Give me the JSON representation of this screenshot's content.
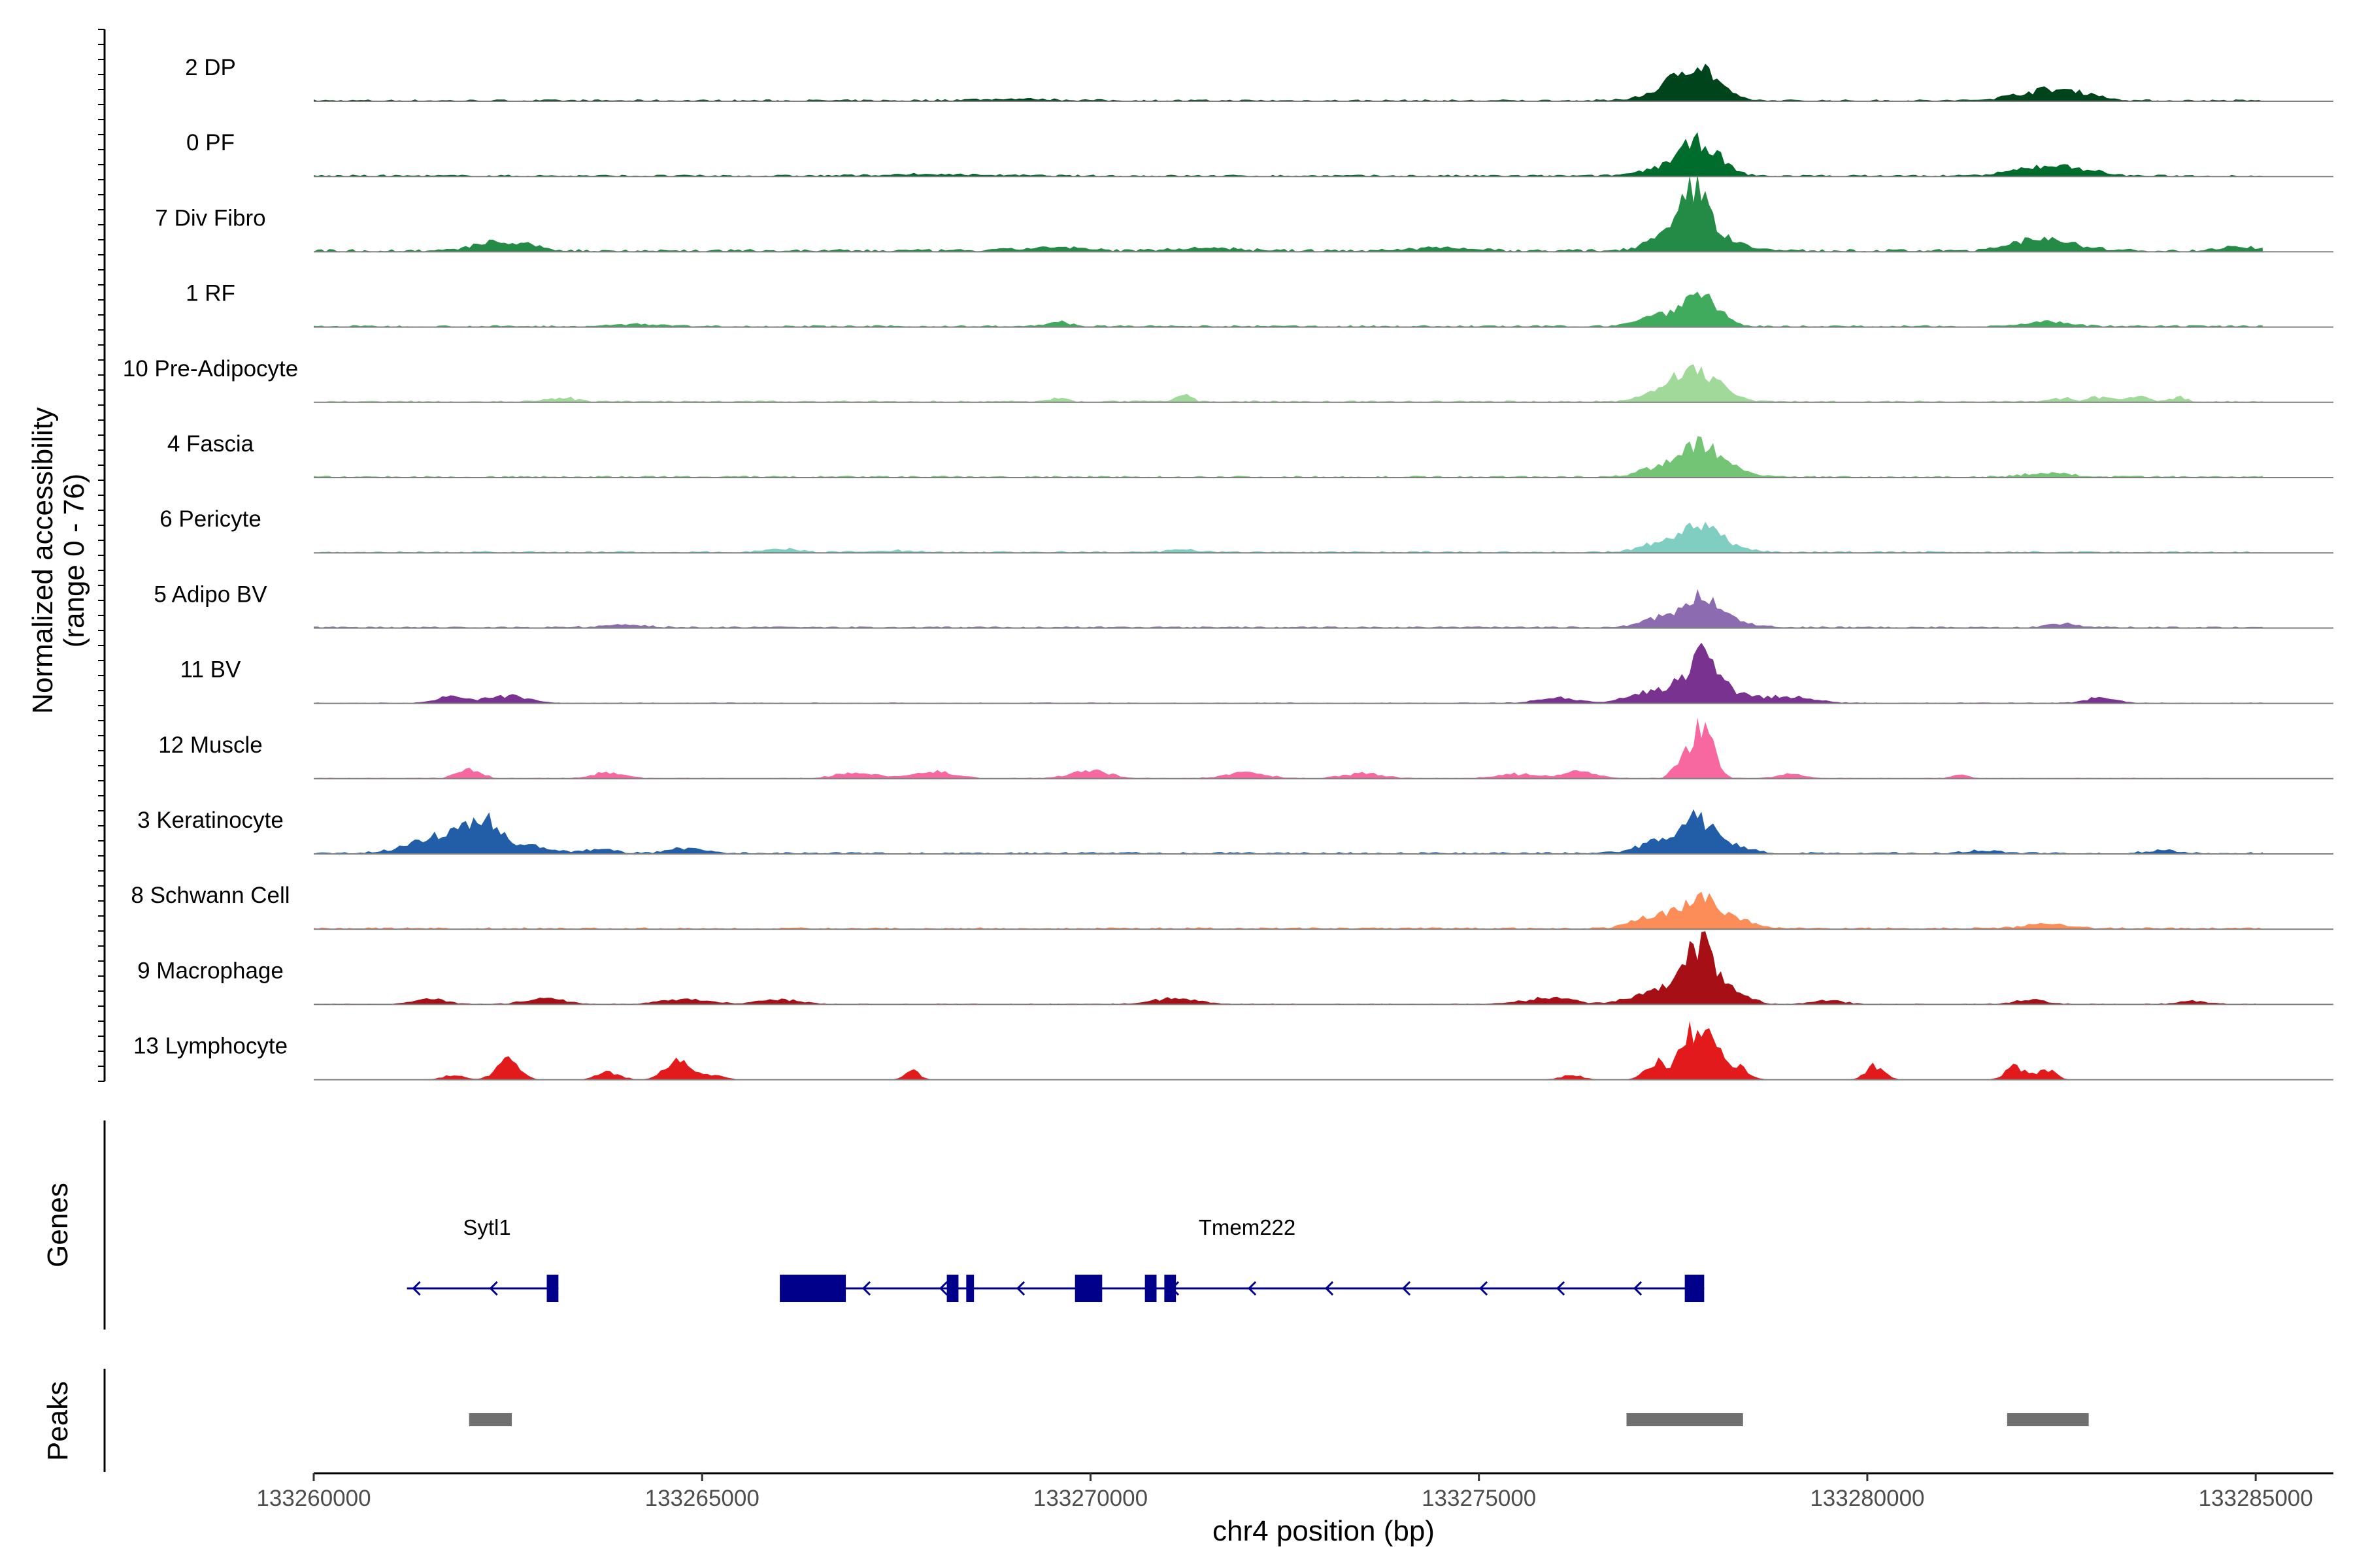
{
  "chart_data": {
    "type": "area",
    "layout": "stacked-tracks",
    "ylabel": "Normalized accessibility",
    "ylabel_range": "(range 0 - 76)",
    "ylim": [
      0,
      76
    ],
    "xlabel": "chr4 position (bp)",
    "xlim": [
      133260000,
      133286000
    ],
    "xticks": [
      133260000,
      133265000,
      133270000,
      133275000,
      133280000,
      133285000
    ],
    "xtick_labels": [
      "133260000",
      "133265000",
      "133270000",
      "133275000",
      "133280000",
      "133285000"
    ],
    "tracks": [
      {
        "label": "2 DP",
        "color": "#00441b",
        "background": 2,
        "peaks": [
          [
            133277820,
            43,
            260
          ],
          [
            133277450,
            12,
            300
          ],
          [
            133282300,
            14,
            380
          ],
          [
            133282800,
            5,
            250
          ],
          [
            133269000,
            2,
            600
          ]
        ]
      },
      {
        "label": "0 PF",
        "color": "#006d2c",
        "background": 2,
        "peaks": [
          [
            133277850,
            42,
            250
          ],
          [
            133277400,
            10,
            300
          ],
          [
            133282300,
            13,
            380
          ],
          [
            133282800,
            4,
            260
          ],
          [
            133268000,
            2,
            700
          ]
        ]
      },
      {
        "label": "7 Div Fibro",
        "color": "#238b45",
        "background": 3,
        "peaks": [
          [
            133277800,
            72,
            170
          ],
          [
            133277500,
            22,
            300
          ],
          [
            133278200,
            12,
            250
          ],
          [
            133262300,
            10,
            250
          ],
          [
            133262700,
            6,
            250
          ],
          [
            133282150,
            17,
            280
          ],
          [
            133282700,
            5,
            280
          ],
          [
            133284800,
            6,
            200
          ],
          [
            133269500,
            4,
            400
          ],
          [
            133271500,
            4,
            400
          ],
          [
            133274500,
            4,
            400
          ]
        ]
      },
      {
        "label": "1 RF",
        "color": "#41ab5d",
        "background": 2,
        "peaks": [
          [
            133277850,
            43,
            230
          ],
          [
            133277300,
            14,
            260
          ],
          [
            133269600,
            6,
            150
          ],
          [
            133282300,
            6,
            300
          ],
          [
            133264200,
            3,
            300
          ]
        ]
      },
      {
        "label": "10 Pre-Adipocyte",
        "color": "#a1d99b",
        "background": 2,
        "peaks": [
          [
            133277800,
            38,
            220
          ],
          [
            133277400,
            18,
            240
          ],
          [
            133278150,
            10,
            200
          ],
          [
            133271200,
            11,
            90
          ],
          [
            133263200,
            6,
            150
          ],
          [
            133269600,
            5,
            100
          ],
          [
            133283500,
            6,
            150
          ],
          [
            133283000,
            6,
            150
          ],
          [
            133284000,
            6,
            100
          ],
          [
            133282500,
            5,
            120
          ]
        ]
      },
      {
        "label": "4 Fascia",
        "color": "#74c476",
        "background": 2,
        "peaks": [
          [
            133277850,
            40,
            230
          ],
          [
            133277350,
            14,
            260
          ],
          [
            133278250,
            8,
            250
          ],
          [
            133282300,
            5,
            300
          ]
        ]
      },
      {
        "label": "6 Pericyte",
        "color": "#80cdc1",
        "background": 2,
        "peaks": [
          [
            133277850,
            36,
            230
          ],
          [
            133277350,
            12,
            270
          ],
          [
            133278250,
            6,
            250
          ],
          [
            133266000,
            5,
            200
          ],
          [
            133267500,
            2,
            300
          ],
          [
            133271200,
            3,
            200
          ]
        ]
      },
      {
        "label": "5 Adipo BV",
        "color": "#8c6bb1",
        "background": 2,
        "peaks": [
          [
            133277850,
            38,
            230
          ],
          [
            133277350,
            12,
            250
          ],
          [
            133278250,
            7,
            260
          ],
          [
            133282500,
            5,
            200
          ],
          [
            133264000,
            3,
            300
          ]
        ]
      },
      {
        "label": "11 BV",
        "color": "#7a3291",
        "background": 1,
        "peaks": [
          [
            133277900,
            58,
            180
          ],
          [
            133277500,
            22,
            260
          ],
          [
            133278350,
            12,
            200
          ],
          [
            133261800,
            9,
            200
          ],
          [
            133262500,
            10,
            250
          ],
          [
            133276000,
            7,
            250
          ],
          [
            133279000,
            9,
            300
          ],
          [
            133283000,
            7,
            200
          ],
          [
            133277000,
            8,
            200
          ]
        ]
      },
      {
        "label": "12 Muscle",
        "color": "#f768a1",
        "background": 1,
        "peaks": [
          [
            133277900,
            72,
            120
          ],
          [
            133277650,
            30,
            120
          ],
          [
            133262000,
            12,
            150
          ],
          [
            133263800,
            8,
            200
          ],
          [
            133267000,
            8,
            250
          ],
          [
            133268000,
            9,
            250
          ],
          [
            133270000,
            10,
            250
          ],
          [
            133272000,
            8,
            250
          ],
          [
            133273500,
            7,
            250
          ],
          [
            133275500,
            6,
            250
          ],
          [
            133276300,
            10,
            200
          ],
          [
            133279000,
            6,
            150
          ],
          [
            133281200,
            5,
            100
          ]
        ]
      },
      {
        "label": "3 Keratinocyte",
        "color": "#225ea8",
        "background": 2,
        "peaks": [
          [
            133262210,
            45,
            200
          ],
          [
            133261800,
            22,
            200
          ],
          [
            133261400,
            14,
            300
          ],
          [
            133262800,
            10,
            250
          ],
          [
            133264800,
            7,
            200
          ],
          [
            133263700,
            6,
            200
          ],
          [
            133277820,
            42,
            220
          ],
          [
            133277350,
            16,
            280
          ],
          [
            133278250,
            8,
            250
          ],
          [
            133281500,
            4,
            200
          ],
          [
            133283800,
            4,
            200
          ]
        ]
      },
      {
        "label": "8 Schwann Cell",
        "color": "#fc8d59",
        "background": 2,
        "peaks": [
          [
            133277850,
            40,
            200
          ],
          [
            133277400,
            16,
            260
          ],
          [
            133278350,
            12,
            200
          ],
          [
            133282300,
            6,
            300
          ],
          [
            133277050,
            6,
            200
          ]
        ]
      },
      {
        "label": "9 Macrophage",
        "color": "#a50f15",
        "background": 1,
        "peaks": [
          [
            133277880,
            76,
            170
          ],
          [
            133277550,
            28,
            200
          ],
          [
            133278300,
            14,
            200
          ],
          [
            133277100,
            10,
            250
          ],
          [
            133261500,
            7,
            200
          ],
          [
            133263000,
            8,
            250
          ],
          [
            133264800,
            7,
            300
          ],
          [
            133266000,
            7,
            250
          ],
          [
            133271100,
            8,
            300
          ],
          [
            133275900,
            9,
            300
          ],
          [
            133279500,
            5,
            200
          ],
          [
            133282100,
            6,
            200
          ],
          [
            133284200,
            4,
            200
          ]
        ]
      },
      {
        "label": "13 Lymphocyte",
        "color": "#e31a1c",
        "background": 0,
        "peaks": [
          [
            133277700,
            68,
            110
          ],
          [
            133278000,
            58,
            110
          ],
          [
            133277300,
            25,
            150
          ],
          [
            133278300,
            20,
            150
          ],
          [
            133262500,
            25,
            150
          ],
          [
            133264700,
            25,
            180
          ],
          [
            133263800,
            10,
            150
          ],
          [
            133267700,
            12,
            100
          ],
          [
            133276200,
            6,
            150
          ],
          [
            133280100,
            19,
            120
          ],
          [
            133281900,
            18,
            120
          ],
          [
            133282300,
            14,
            120
          ],
          [
            133265200,
            6,
            120
          ],
          [
            133261800,
            6,
            150
          ]
        ]
      }
    ],
    "genes": [
      {
        "name": "Sytl1",
        "strand": "-",
        "start": 133261200,
        "end": 133263150,
        "exons": [
          [
            133263000,
            133263150
          ]
        ]
      },
      {
        "name": "Tmem222",
        "strand": "-",
        "start": 133266000,
        "end": 133277900,
        "exons": [
          [
            133266000,
            133266850
          ],
          [
            133268150,
            133268300
          ],
          [
            133268400,
            133268500
          ],
          [
            133269800,
            133270150
          ],
          [
            133270700,
            133270850
          ],
          [
            133270950,
            133271100
          ],
          [
            133277650,
            133277900
          ]
        ]
      }
    ],
    "peak_regions": [
      [
        133262000,
        133262550
      ],
      [
        133276900,
        133278400
      ],
      [
        133281800,
        133282850
      ]
    ],
    "panels": [
      "Genes",
      "Peaks"
    ]
  }
}
